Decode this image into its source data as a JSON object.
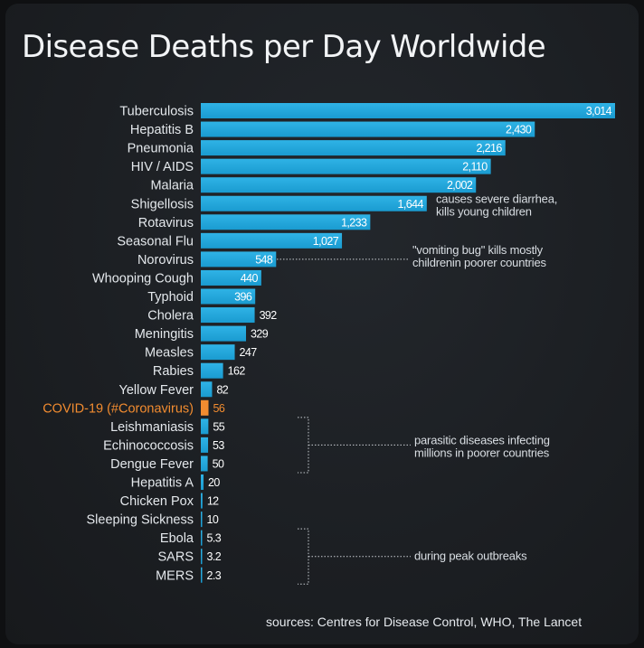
{
  "header": {
    "title": "Disease Deaths per Day Worldwide"
  },
  "footer": {
    "sources": "sources: Centres for Disease Control, WHO, The Lancet"
  },
  "colors": {
    "bar": "#1a9bd0",
    "bar_light": "#2fb3e6",
    "highlight": "#f28c30",
    "label_text": "#e4e8ec",
    "value_text": "#ffffff",
    "annotation_text": "#d9dee3",
    "dotted_line": "#c9ced3"
  },
  "chart_data": {
    "type": "bar",
    "orientation": "horizontal",
    "title": "Disease Deaths per Day Worldwide",
    "categories": [
      "Tuberculosis",
      "Hepatitis B",
      "Pneumonia",
      "HIV / AIDS",
      "Malaria",
      "Shigellosis",
      "Rotavirus",
      "Seasonal Flu",
      "Norovirus",
      "Whooping Cough",
      "Typhoid",
      "Cholera",
      "Meningitis",
      "Measles",
      "Rabies",
      "Yellow Fever",
      "COVID-19 (#Coronavirus)",
      "Leishmaniasis",
      "Echinococcosis",
      "Dengue Fever",
      "Hepatitis A",
      "Chicken Pox",
      "Sleeping Sickness",
      "Ebola",
      "SARS",
      "MERS"
    ],
    "values": [
      3014,
      2430,
      2216,
      2110,
      2002,
      1644,
      1233,
      1027,
      548,
      440,
      396,
      392,
      329,
      247,
      162,
      82,
      56,
      55,
      53,
      50,
      20,
      12,
      10,
      5.3,
      3.2,
      2.3
    ],
    "value_labels": [
      "3,014",
      "2,430",
      "2,216",
      "2,110",
      "2,002",
      "1,644",
      "1,233",
      "1,027",
      "548",
      "440",
      "396",
      "392",
      "329",
      "247",
      "162",
      "82",
      "56",
      "55",
      "53",
      "50",
      "20",
      "12",
      "10",
      "5.3",
      "3.2",
      "2.3"
    ],
    "highlight_category": "COVID-19 (#Coronavirus)",
    "xlim": [
      0,
      3014
    ],
    "grid": false,
    "legend": "none",
    "annotations": [
      {
        "lines": [
          "causes severe diarrhea,",
          "kills young children"
        ],
        "target": "Shigellosis"
      },
      {
        "lines": [
          "\"vomiting bug\" kills mostly",
          "childrenin poorer countries"
        ],
        "target": "Norovirus"
      },
      {
        "lines": [
          "parasitic diseases infecting",
          "millions in poorer countries"
        ],
        "targets": [
          "Leishmaniasis",
          "Echinococcosis",
          "Dengue Fever"
        ]
      },
      {
        "lines": [
          "during peak outbreaks"
        ],
        "targets": [
          "Ebola",
          "SARS",
          "MERS"
        ]
      }
    ]
  }
}
